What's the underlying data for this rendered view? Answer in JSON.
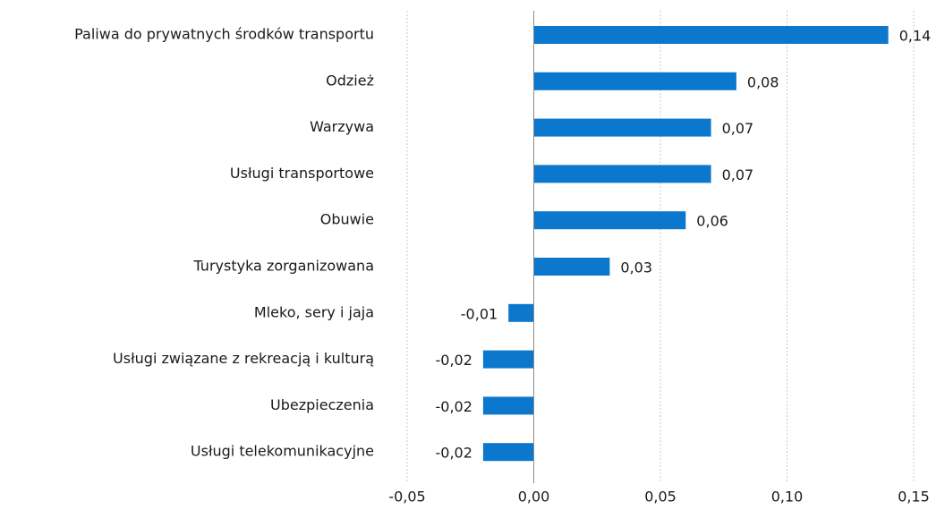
{
  "chart_data": {
    "type": "bar",
    "orientation": "horizontal",
    "categories": [
      "Paliwa do prywatnych środków transportu",
      "Odzież",
      "Warzywa",
      "Usługi transportowe",
      "Obuwie",
      "Turystyka zorganizowana",
      "Mleko, sery i jaja",
      "Usługi związane z rekreacją i kulturą",
      "Ubezpieczenia",
      "Usługi telekomunikacyjne"
    ],
    "values": [
      0.14,
      0.08,
      0.07,
      0.07,
      0.06,
      0.03,
      -0.01,
      -0.02,
      -0.02,
      -0.02
    ],
    "value_labels": [
      "0,14",
      "0,08",
      "0,07",
      "0,07",
      "0,06",
      "0,03",
      "-0,01",
      "-0,02",
      "-0,02",
      "-0,02"
    ],
    "color": "#0b78ce",
    "xlim": [
      -0.05,
      0.15
    ],
    "xticks": [
      {
        "value": -0.05,
        "label": "-0,05"
      },
      {
        "value": 0,
        "label": "0,00"
      },
      {
        "value": 0.05,
        "label": "0,05"
      },
      {
        "value": 0.1,
        "label": "0,10"
      },
      {
        "value": 0.15,
        "label": "0,15"
      }
    ],
    "grid": true
  }
}
